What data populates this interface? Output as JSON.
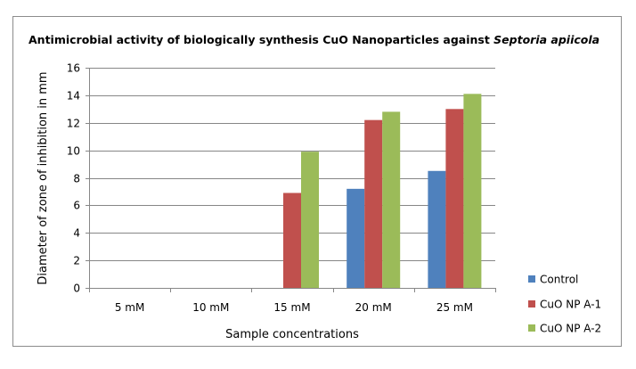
{
  "chart_data": {
    "type": "bar",
    "title": "Antimicrobial activity of  biologically synthesis CuO Nanoparticles against ",
    "title_italic": "Septoria apiicola",
    "xlabel": "Sample concentrations",
    "ylabel": "Diameter of zone of inhibition in mm",
    "categories": [
      "5 mM",
      "10 mM",
      "15 mM",
      "20 mM",
      "25 mM"
    ],
    "ylim": [
      0,
      16
    ],
    "yticks": [
      "0",
      "2",
      "4",
      "6",
      "8",
      "10",
      "12",
      "14",
      "16"
    ],
    "grid": true,
    "legend_position": "right-bottom",
    "series": [
      {
        "name": "Control",
        "color": "#4F81BD",
        "values": [
          0,
          0,
          0,
          7.2,
          8.5
        ]
      },
      {
        "name": "CuO NP A-1",
        "color": "#C0504D",
        "values": [
          0,
          0,
          6.9,
          12.2,
          13.0
        ]
      },
      {
        "name": "CuO NP A-2",
        "color": "#9BBB59",
        "values": [
          0,
          0,
          9.9,
          12.8,
          14.1
        ]
      }
    ]
  }
}
